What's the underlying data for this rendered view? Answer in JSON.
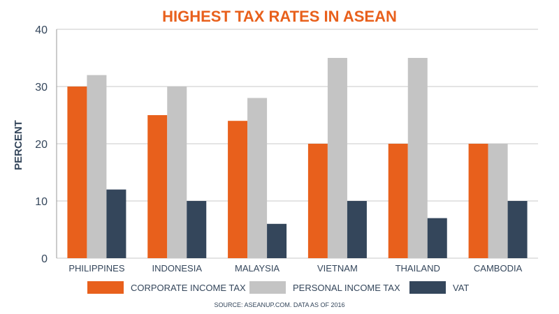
{
  "chart_data": {
    "type": "bar",
    "title": "HIGHEST TAX RATES IN ASEAN",
    "ylabel": "PERCENT",
    "xlabel": "",
    "source": "SOURCE: ASEANUP.COM. DATA AS OF 2016",
    "ylim": [
      0,
      40
    ],
    "yticks": [
      0,
      10,
      20,
      30,
      40
    ],
    "grid": true,
    "legend_position": "bottom",
    "categories": [
      "PHILIPPINES",
      "INDONESIA",
      "MALAYSIA",
      "VIETNAM",
      "THAILAND",
      "CAMBODIA"
    ],
    "series": [
      {
        "name": "CORPORATE INCOME TAX",
        "color": "#e8601c",
        "values": [
          30,
          25,
          24,
          20,
          20,
          20
        ]
      },
      {
        "name": "PERSONAL INCOME TAX",
        "color": "#c4c4c4",
        "values": [
          32,
          30,
          28,
          35,
          35,
          20
        ]
      },
      {
        "name": "VAT",
        "color": "#34465b",
        "values": [
          12,
          10,
          6,
          10,
          7,
          10
        ]
      }
    ],
    "colors": {
      "title": "#e8601c",
      "axis_text": "#34465b",
      "grid": "#c8c8c8"
    }
  }
}
